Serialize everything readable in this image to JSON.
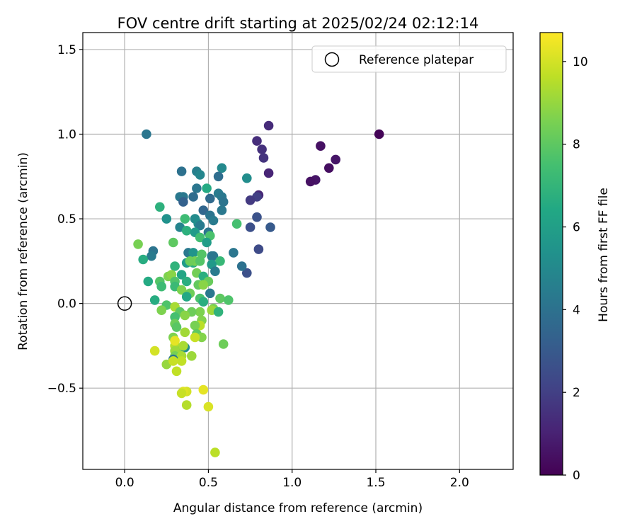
{
  "chart_data": {
    "type": "scatter",
    "title": "FOV centre drift starting at 2025/02/24 02:12:14",
    "xlabel": "Angular distance from reference (arcmin)",
    "ylabel": "Rotation from reference (arcmin)",
    "xlim": [
      -0.25,
      2.32
    ],
    "ylim": [
      -0.98,
      1.6
    ],
    "xticks": [
      0.0,
      0.5,
      1.0,
      1.5,
      2.0
    ],
    "xtick_labels": [
      "0.0",
      "0.5",
      "1.0",
      "1.5",
      "2.0"
    ],
    "yticks": [
      -0.5,
      0.0,
      0.5,
      1.0,
      1.5
    ],
    "ytick_labels": [
      "−0.5",
      "0.0",
      "0.5",
      "1.0",
      "1.5"
    ],
    "grid": true,
    "legend": {
      "placement": "top-right",
      "entries": [
        {
          "label": "Reference platepar",
          "marker": "open-circle"
        }
      ]
    },
    "reference_point": {
      "x": 0.0,
      "y": 0.0
    },
    "colorbar": {
      "label": "Hours from first FF file",
      "min": 0,
      "max": 10.7,
      "ticks": [
        0,
        2,
        4,
        6,
        8,
        10
      ],
      "tick_labels": [
        "0",
        "2",
        "4",
        "6",
        "8",
        "10"
      ],
      "colormap": "viridis"
    },
    "points": [
      {
        "x": 1.52,
        "y": 1.0,
        "h": 0.1
      },
      {
        "x": 1.26,
        "y": 0.85,
        "h": 0.6
      },
      {
        "x": 1.22,
        "y": 0.8,
        "h": 0.4
      },
      {
        "x": 1.17,
        "y": 0.93,
        "h": 0.5
      },
      {
        "x": 1.14,
        "y": 0.73,
        "h": 0.6
      },
      {
        "x": 1.11,
        "y": 0.72,
        "h": 0.5
      },
      {
        "x": 0.86,
        "y": 1.05,
        "h": 1.3
      },
      {
        "x": 0.79,
        "y": 0.96,
        "h": 1.4
      },
      {
        "x": 0.82,
        "y": 0.91,
        "h": 1.5
      },
      {
        "x": 0.83,
        "y": 0.86,
        "h": 1.6
      },
      {
        "x": 0.86,
        "y": 0.77,
        "h": 1.1
      },
      {
        "x": 0.8,
        "y": 0.64,
        "h": 1.2
      },
      {
        "x": 0.79,
        "y": 0.63,
        "h": 2.0
      },
      {
        "x": 0.75,
        "y": 0.61,
        "h": 1.8
      },
      {
        "x": 0.79,
        "y": 0.51,
        "h": 2.7
      },
      {
        "x": 0.75,
        "y": 0.45,
        "h": 2.6
      },
      {
        "x": 0.87,
        "y": 0.45,
        "h": 3.0
      },
      {
        "x": 0.8,
        "y": 0.32,
        "h": 2.4
      },
      {
        "x": 0.73,
        "y": 0.18,
        "h": 2.6
      },
      {
        "x": 0.13,
        "y": 1.0,
        "h": 4.2
      },
      {
        "x": 0.34,
        "y": 0.78,
        "h": 4.0
      },
      {
        "x": 0.43,
        "y": 0.78,
        "h": 4.6
      },
      {
        "x": 0.45,
        "y": 0.76,
        "h": 4.9
      },
      {
        "x": 0.58,
        "y": 0.8,
        "h": 5.0
      },
      {
        "x": 0.56,
        "y": 0.75,
        "h": 3.8
      },
      {
        "x": 0.73,
        "y": 0.74,
        "h": 5.2
      },
      {
        "x": 0.49,
        "y": 0.68,
        "h": 6.5
      },
      {
        "x": 0.43,
        "y": 0.68,
        "h": 4.2
      },
      {
        "x": 0.56,
        "y": 0.65,
        "h": 4.4
      },
      {
        "x": 0.58,
        "y": 0.63,
        "h": 4.3
      },
      {
        "x": 0.59,
        "y": 0.6,
        "h": 4.1
      },
      {
        "x": 0.33,
        "y": 0.63,
        "h": 4.3
      },
      {
        "x": 0.35,
        "y": 0.63,
        "h": 4.3
      },
      {
        "x": 0.41,
        "y": 0.63,
        "h": 3.8
      },
      {
        "x": 0.51,
        "y": 0.62,
        "h": 3.7
      },
      {
        "x": 0.35,
        "y": 0.6,
        "h": 3.3
      },
      {
        "x": 0.21,
        "y": 0.57,
        "h": 6.8
      },
      {
        "x": 0.47,
        "y": 0.55,
        "h": 3.5
      },
      {
        "x": 0.58,
        "y": 0.55,
        "h": 4.3
      },
      {
        "x": 0.51,
        "y": 0.52,
        "h": 4.1
      },
      {
        "x": 0.53,
        "y": 0.49,
        "h": 4.4
      },
      {
        "x": 0.25,
        "y": 0.5,
        "h": 5.4
      },
      {
        "x": 0.36,
        "y": 0.5,
        "h": 7.3
      },
      {
        "x": 0.42,
        "y": 0.5,
        "h": 5.1
      },
      {
        "x": 0.44,
        "y": 0.47,
        "h": 5.2
      },
      {
        "x": 0.45,
        "y": 0.46,
        "h": 4.4
      },
      {
        "x": 0.33,
        "y": 0.45,
        "h": 4.8
      },
      {
        "x": 0.67,
        "y": 0.47,
        "h": 7.5
      },
      {
        "x": 0.37,
        "y": 0.43,
        "h": 6.8
      },
      {
        "x": 0.42,
        "y": 0.42,
        "h": 5.8
      },
      {
        "x": 0.5,
        "y": 0.42,
        "h": 4.2
      },
      {
        "x": 0.51,
        "y": 0.4,
        "h": 7.6
      },
      {
        "x": 0.45,
        "y": 0.39,
        "h": 7.4
      },
      {
        "x": 0.29,
        "y": 0.36,
        "h": 8.0
      },
      {
        "x": 0.49,
        "y": 0.36,
        "h": 5.9
      },
      {
        "x": 0.08,
        "y": 0.35,
        "h": 8.5
      },
      {
        "x": 0.17,
        "y": 0.31,
        "h": 4.1
      },
      {
        "x": 0.16,
        "y": 0.28,
        "h": 4.4
      },
      {
        "x": 0.38,
        "y": 0.3,
        "h": 4.3
      },
      {
        "x": 0.41,
        "y": 0.3,
        "h": 5.5
      },
      {
        "x": 0.46,
        "y": 0.29,
        "h": 7.8
      },
      {
        "x": 0.52,
        "y": 0.28,
        "h": 4.5
      },
      {
        "x": 0.53,
        "y": 0.28,
        "h": 4.2
      },
      {
        "x": 0.65,
        "y": 0.3,
        "h": 4.2
      },
      {
        "x": 0.11,
        "y": 0.26,
        "h": 6.6
      },
      {
        "x": 0.57,
        "y": 0.25,
        "h": 7.1
      },
      {
        "x": 0.41,
        "y": 0.24,
        "h": 6.6
      },
      {
        "x": 0.37,
        "y": 0.24,
        "h": 5.8
      },
      {
        "x": 0.52,
        "y": 0.23,
        "h": 5.7
      },
      {
        "x": 0.42,
        "y": 0.25,
        "h": 8.5
      },
      {
        "x": 0.39,
        "y": 0.25,
        "h": 8.3
      },
      {
        "x": 0.45,
        "y": 0.25,
        "h": 7.8
      },
      {
        "x": 0.3,
        "y": 0.22,
        "h": 6.9
      },
      {
        "x": 0.7,
        "y": 0.22,
        "h": 4.0
      },
      {
        "x": 0.54,
        "y": 0.19,
        "h": 4.4
      },
      {
        "x": 0.43,
        "y": 0.18,
        "h": 8.4
      },
      {
        "x": 0.47,
        "y": 0.16,
        "h": 6.7
      },
      {
        "x": 0.26,
        "y": 0.16,
        "h": 8.6
      },
      {
        "x": 0.28,
        "y": 0.17,
        "h": 8.8
      },
      {
        "x": 0.34,
        "y": 0.17,
        "h": 6.3
      },
      {
        "x": 0.37,
        "y": 0.13,
        "h": 6.7
      },
      {
        "x": 0.5,
        "y": 0.13,
        "h": 8.2
      },
      {
        "x": 0.14,
        "y": 0.13,
        "h": 6.5
      },
      {
        "x": 0.21,
        "y": 0.13,
        "h": 7.8
      },
      {
        "x": 0.22,
        "y": 0.1,
        "h": 7.3
      },
      {
        "x": 0.3,
        "y": 0.13,
        "h": 7.7
      },
      {
        "x": 0.3,
        "y": 0.1,
        "h": 7.2
      },
      {
        "x": 0.34,
        "y": 0.08,
        "h": 8.6
      },
      {
        "x": 0.44,
        "y": 0.11,
        "h": 8.1
      },
      {
        "x": 0.47,
        "y": 0.11,
        "h": 8.8
      },
      {
        "x": 0.39,
        "y": 0.06,
        "h": 8.3
      },
      {
        "x": 0.51,
        "y": 0.06,
        "h": 4.3
      },
      {
        "x": 0.45,
        "y": 0.03,
        "h": 7.6
      },
      {
        "x": 0.57,
        "y": 0.03,
        "h": 8.0
      },
      {
        "x": 0.62,
        "y": 0.02,
        "h": 7.7
      },
      {
        "x": 0.18,
        "y": 0.02,
        "h": 6.6
      },
      {
        "x": 0.37,
        "y": 0.04,
        "h": 6.4
      },
      {
        "x": 0.47,
        "y": 0.01,
        "h": 6.7
      },
      {
        "x": 0.25,
        "y": -0.01,
        "h": 7.7
      },
      {
        "x": 0.3,
        "y": -0.02,
        "h": 9.3
      },
      {
        "x": 0.22,
        "y": -0.04,
        "h": 8.6
      },
      {
        "x": 0.33,
        "y": -0.05,
        "h": 8.0
      },
      {
        "x": 0.45,
        "y": -0.05,
        "h": 8.6
      },
      {
        "x": 0.53,
        "y": -0.03,
        "h": 8.5
      },
      {
        "x": 0.52,
        "y": -0.04,
        "h": 9.1
      },
      {
        "x": 0.4,
        "y": -0.05,
        "h": 8.3
      },
      {
        "x": 0.56,
        "y": -0.05,
        "h": 6.9
      },
      {
        "x": 0.3,
        "y": -0.08,
        "h": 7.5
      },
      {
        "x": 0.36,
        "y": -0.07,
        "h": 8.8
      },
      {
        "x": 0.46,
        "y": -0.1,
        "h": 8.7
      },
      {
        "x": 0.45,
        "y": -0.13,
        "h": 9.6
      },
      {
        "x": 0.3,
        "y": -0.12,
        "h": 8.3
      },
      {
        "x": 0.31,
        "y": -0.14,
        "h": 7.9
      },
      {
        "x": 0.42,
        "y": -0.13,
        "h": 8.5
      },
      {
        "x": 0.36,
        "y": -0.17,
        "h": 9.2
      },
      {
        "x": 0.29,
        "y": -0.2,
        "h": 8.6
      },
      {
        "x": 0.43,
        "y": -0.18,
        "h": 8.0
      },
      {
        "x": 0.46,
        "y": -0.2,
        "h": 8.7
      },
      {
        "x": 0.42,
        "y": -0.2,
        "h": 9.8
      },
      {
        "x": 0.3,
        "y": -0.25,
        "h": 9.5
      },
      {
        "x": 0.33,
        "y": -0.28,
        "h": 8.7
      },
      {
        "x": 0.36,
        "y": -0.26,
        "h": 5.2
      },
      {
        "x": 0.35,
        "y": -0.25,
        "h": 9.3
      },
      {
        "x": 0.59,
        "y": -0.24,
        "h": 8.3
      },
      {
        "x": 0.3,
        "y": -0.28,
        "h": 9.1
      },
      {
        "x": 0.18,
        "y": -0.28,
        "h": 10.0
      },
      {
        "x": 0.3,
        "y": -0.22,
        "h": 10.3
      },
      {
        "x": 0.4,
        "y": -0.31,
        "h": 9.1
      },
      {
        "x": 0.3,
        "y": -0.31,
        "h": 8.5
      },
      {
        "x": 0.34,
        "y": -0.31,
        "h": 9.3
      },
      {
        "x": 0.29,
        "y": -0.33,
        "h": 4.2
      },
      {
        "x": 0.34,
        "y": -0.34,
        "h": 9.7
      },
      {
        "x": 0.25,
        "y": -0.36,
        "h": 9.0
      },
      {
        "x": 0.29,
        "y": -0.34,
        "h": 9.8
      },
      {
        "x": 0.31,
        "y": -0.4,
        "h": 9.7
      },
      {
        "x": 0.37,
        "y": -0.52,
        "h": 10.0
      },
      {
        "x": 0.35,
        "y": -0.52,
        "h": 10.2
      },
      {
        "x": 0.34,
        "y": -0.53,
        "h": 9.8
      },
      {
        "x": 0.47,
        "y": -0.51,
        "h": 10.3
      },
      {
        "x": 0.37,
        "y": -0.6,
        "h": 9.5
      },
      {
        "x": 0.5,
        "y": -0.61,
        "h": 10.1
      },
      {
        "x": 0.54,
        "y": -0.88,
        "h": 9.6
      }
    ]
  }
}
